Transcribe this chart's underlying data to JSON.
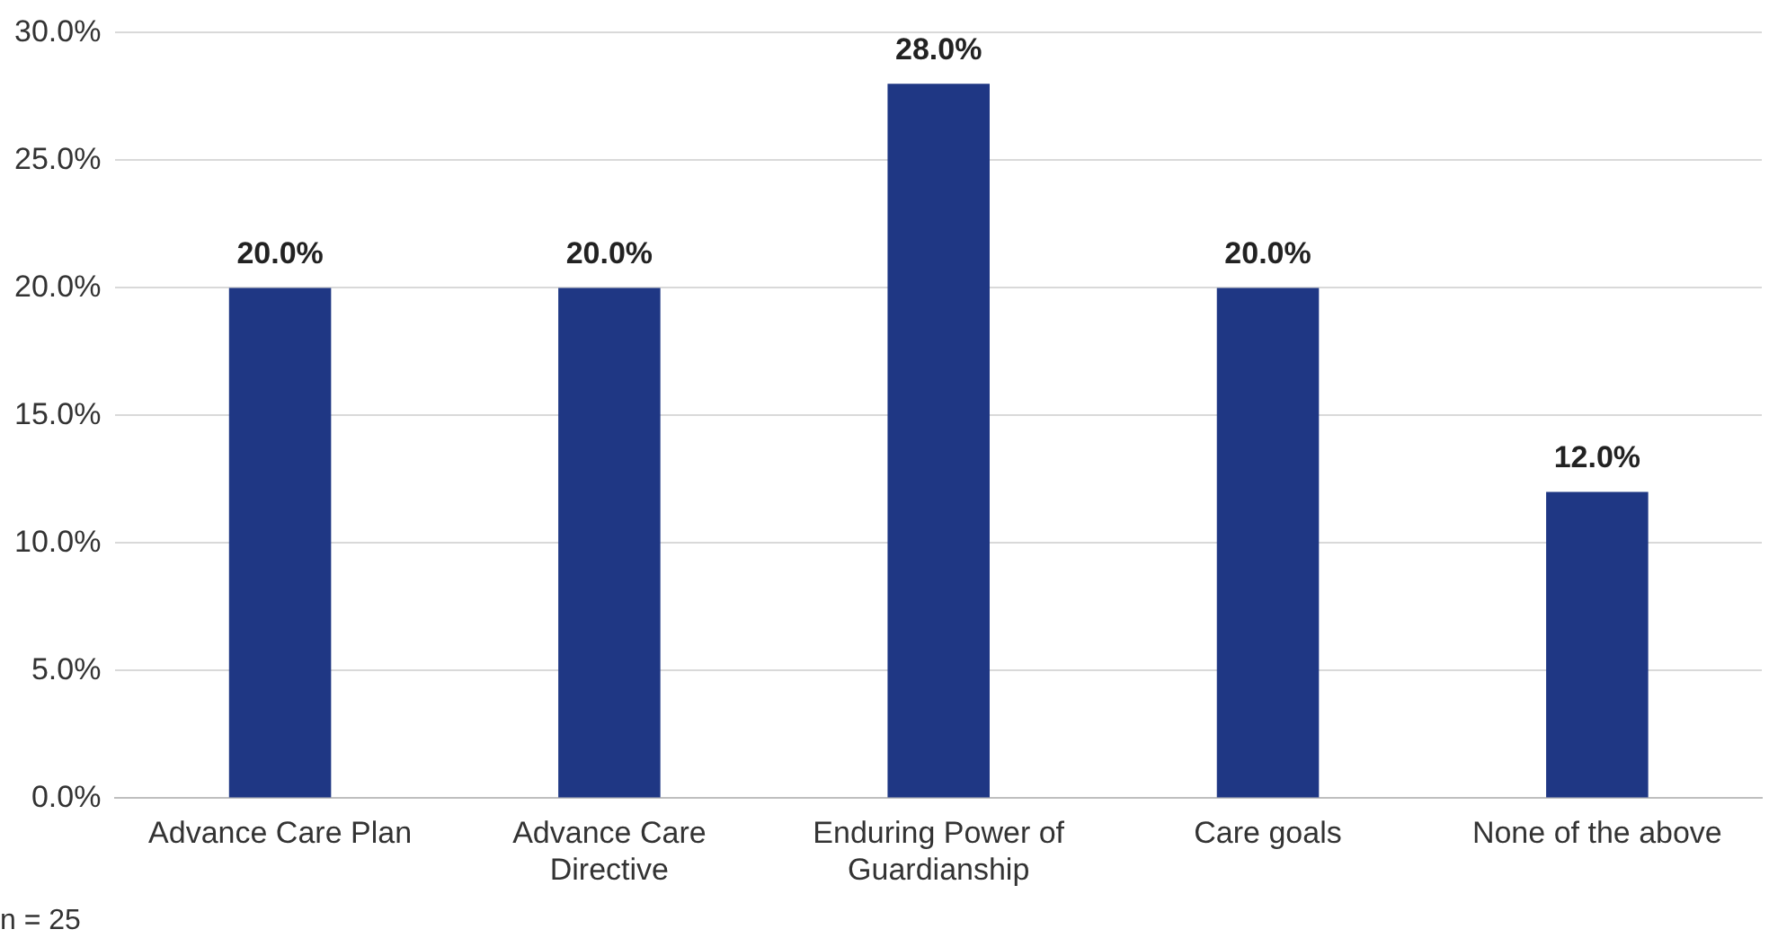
{
  "chart_data": {
    "type": "bar",
    "categories": [
      "Advance Care Plan",
      "Advance Care Directive",
      "Enduring Power of Guardianship",
      "Care goals",
      "None of the above"
    ],
    "values": [
      20,
      20,
      28,
      20,
      12
    ],
    "color": "#1f3784",
    "value_labels": [
      "20.0%",
      "20.0%",
      "28.0%",
      "20.0%",
      "12.0%"
    ],
    "ylim": [
      0,
      30
    ],
    "yticks": [
      {
        "value": 0,
        "label": "0.0%"
      },
      {
        "value": 5,
        "label": "5.0%"
      },
      {
        "value": 10,
        "label": "10.0%"
      },
      {
        "value": 15,
        "label": "15.0%"
      },
      {
        "value": 20,
        "label": "20.0%"
      },
      {
        "value": 25,
        "label": "25.0%"
      },
      {
        "value": 30,
        "label": "30.0%"
      }
    ],
    "grid": "y",
    "legend": false,
    "annotations": [
      "n = 25"
    ]
  }
}
